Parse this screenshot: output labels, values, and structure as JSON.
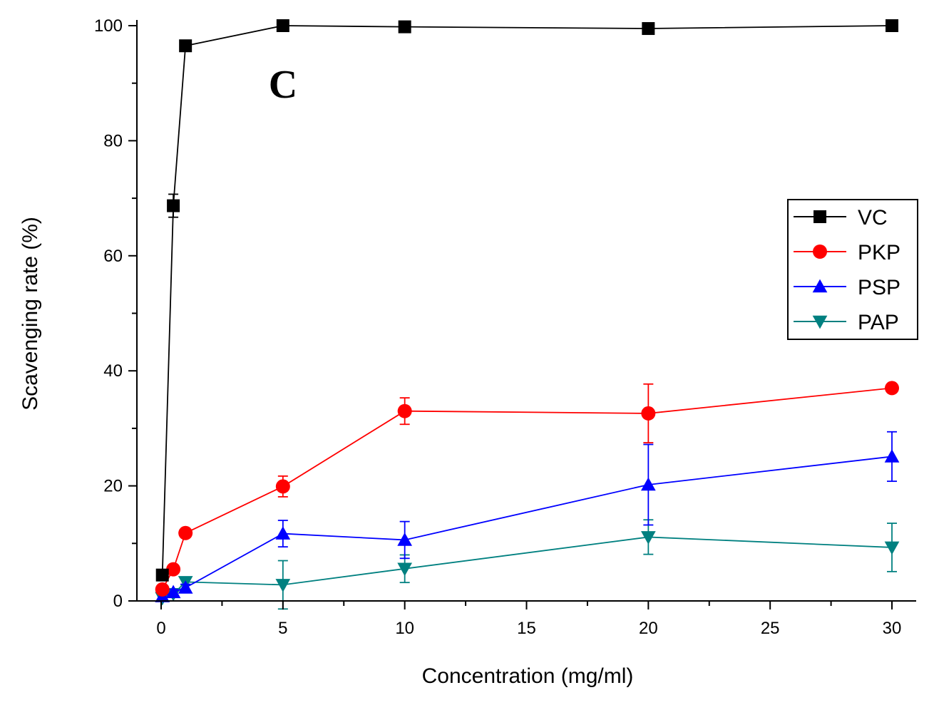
{
  "chart_data": {
    "type": "line",
    "title": "",
    "panel_label": "C",
    "xlabel": "Concentration (mg/ml)",
    "ylabel": "Scavenging rate (%)",
    "xlim": [
      -2,
      31
    ],
    "ylim": [
      0,
      101
    ],
    "x_ticks": [
      0,
      5,
      10,
      15,
      20,
      25,
      30
    ],
    "y_ticks": [
      0,
      20,
      40,
      60,
      80,
      100
    ],
    "grid": false,
    "legend_position": "right",
    "series": [
      {
        "name": "VC",
        "color": "#000000",
        "marker": "square",
        "x": [
          0.05,
          0.5,
          1,
          5,
          10,
          20,
          30
        ],
        "y": [
          4.5,
          68.7,
          96.5,
          100,
          99.8,
          99.5,
          100
        ],
        "err": [
          0.6,
          2.0,
          0.5,
          0.3,
          0.3,
          0.3,
          0.3
        ]
      },
      {
        "name": "PKP",
        "color": "#ff0000",
        "marker": "circle",
        "x": [
          0.05,
          0.5,
          1,
          5,
          10,
          20,
          30
        ],
        "y": [
          2.0,
          5.5,
          11.8,
          19.9,
          33.0,
          32.6,
          37.0
        ],
        "err": [
          0.5,
          0.6,
          0.7,
          1.8,
          2.3,
          5.1,
          0.5
        ]
      },
      {
        "name": "PSP",
        "color": "#0000ff",
        "marker": "triangle-up",
        "x": [
          0.05,
          0.5,
          1,
          5,
          10,
          20,
          30
        ],
        "y": [
          0.8,
          1.5,
          2.3,
          11.7,
          10.6,
          20.2,
          25.1
        ],
        "err": [
          0.4,
          0.5,
          0.6,
          2.3,
          3.2,
          7.0,
          4.3
        ]
      },
      {
        "name": "PAP",
        "color": "#008080",
        "marker": "triangle-down",
        "x": [
          0.05,
          0.5,
          1,
          5,
          10,
          20,
          30
        ],
        "y": [
          0.5,
          1.2,
          3.3,
          2.8,
          5.6,
          11.1,
          9.3
        ],
        "err": [
          0.3,
          0.4,
          0.5,
          4.2,
          2.4,
          3.0,
          4.2
        ]
      }
    ]
  }
}
